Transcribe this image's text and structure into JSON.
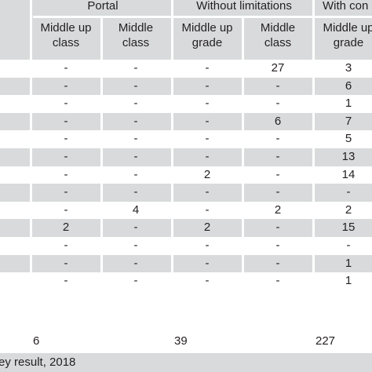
{
  "header": {
    "groups": [
      "Portal",
      "Without limitations",
      "With con"
    ],
    "sub": [
      [
        "Middle up",
        "class"
      ],
      [
        "Middle",
        "class"
      ],
      [
        "Middle up",
        "grade"
      ],
      [
        "Middle",
        "class"
      ],
      [
        "Middle up",
        "grade"
      ]
    ]
  },
  "rows": [
    [
      "-",
      "-",
      "-",
      "27",
      "3"
    ],
    [
      "-",
      "-",
      "-",
      "-",
      "6"
    ],
    [
      "-",
      "-",
      "-",
      "-",
      "1"
    ],
    [
      "-",
      "-",
      "-",
      "6",
      "7"
    ],
    [
      "-",
      "-",
      "-",
      "-",
      "5"
    ],
    [
      "-",
      "-",
      "-",
      "-",
      "13"
    ],
    [
      "-",
      "-",
      "2",
      "-",
      "14"
    ],
    [
      "-",
      "-",
      "-",
      "-",
      "-"
    ],
    [
      "-",
      "4",
      "-",
      "2",
      "2"
    ],
    [
      "2",
      "-",
      "2",
      "-",
      "15"
    ],
    [
      "-",
      "-",
      "-",
      "-",
      "-"
    ],
    [
      "-",
      "-",
      "-",
      "-",
      "1"
    ],
    [
      "-",
      "-",
      "-",
      "-",
      "1"
    ]
  ],
  "totals": [
    "6",
    "39",
    "227"
  ],
  "footer": "ey result, 2018",
  "colors": {
    "band": "#d8dadb",
    "text": "#231f20",
    "divider": "#ffffff"
  }
}
